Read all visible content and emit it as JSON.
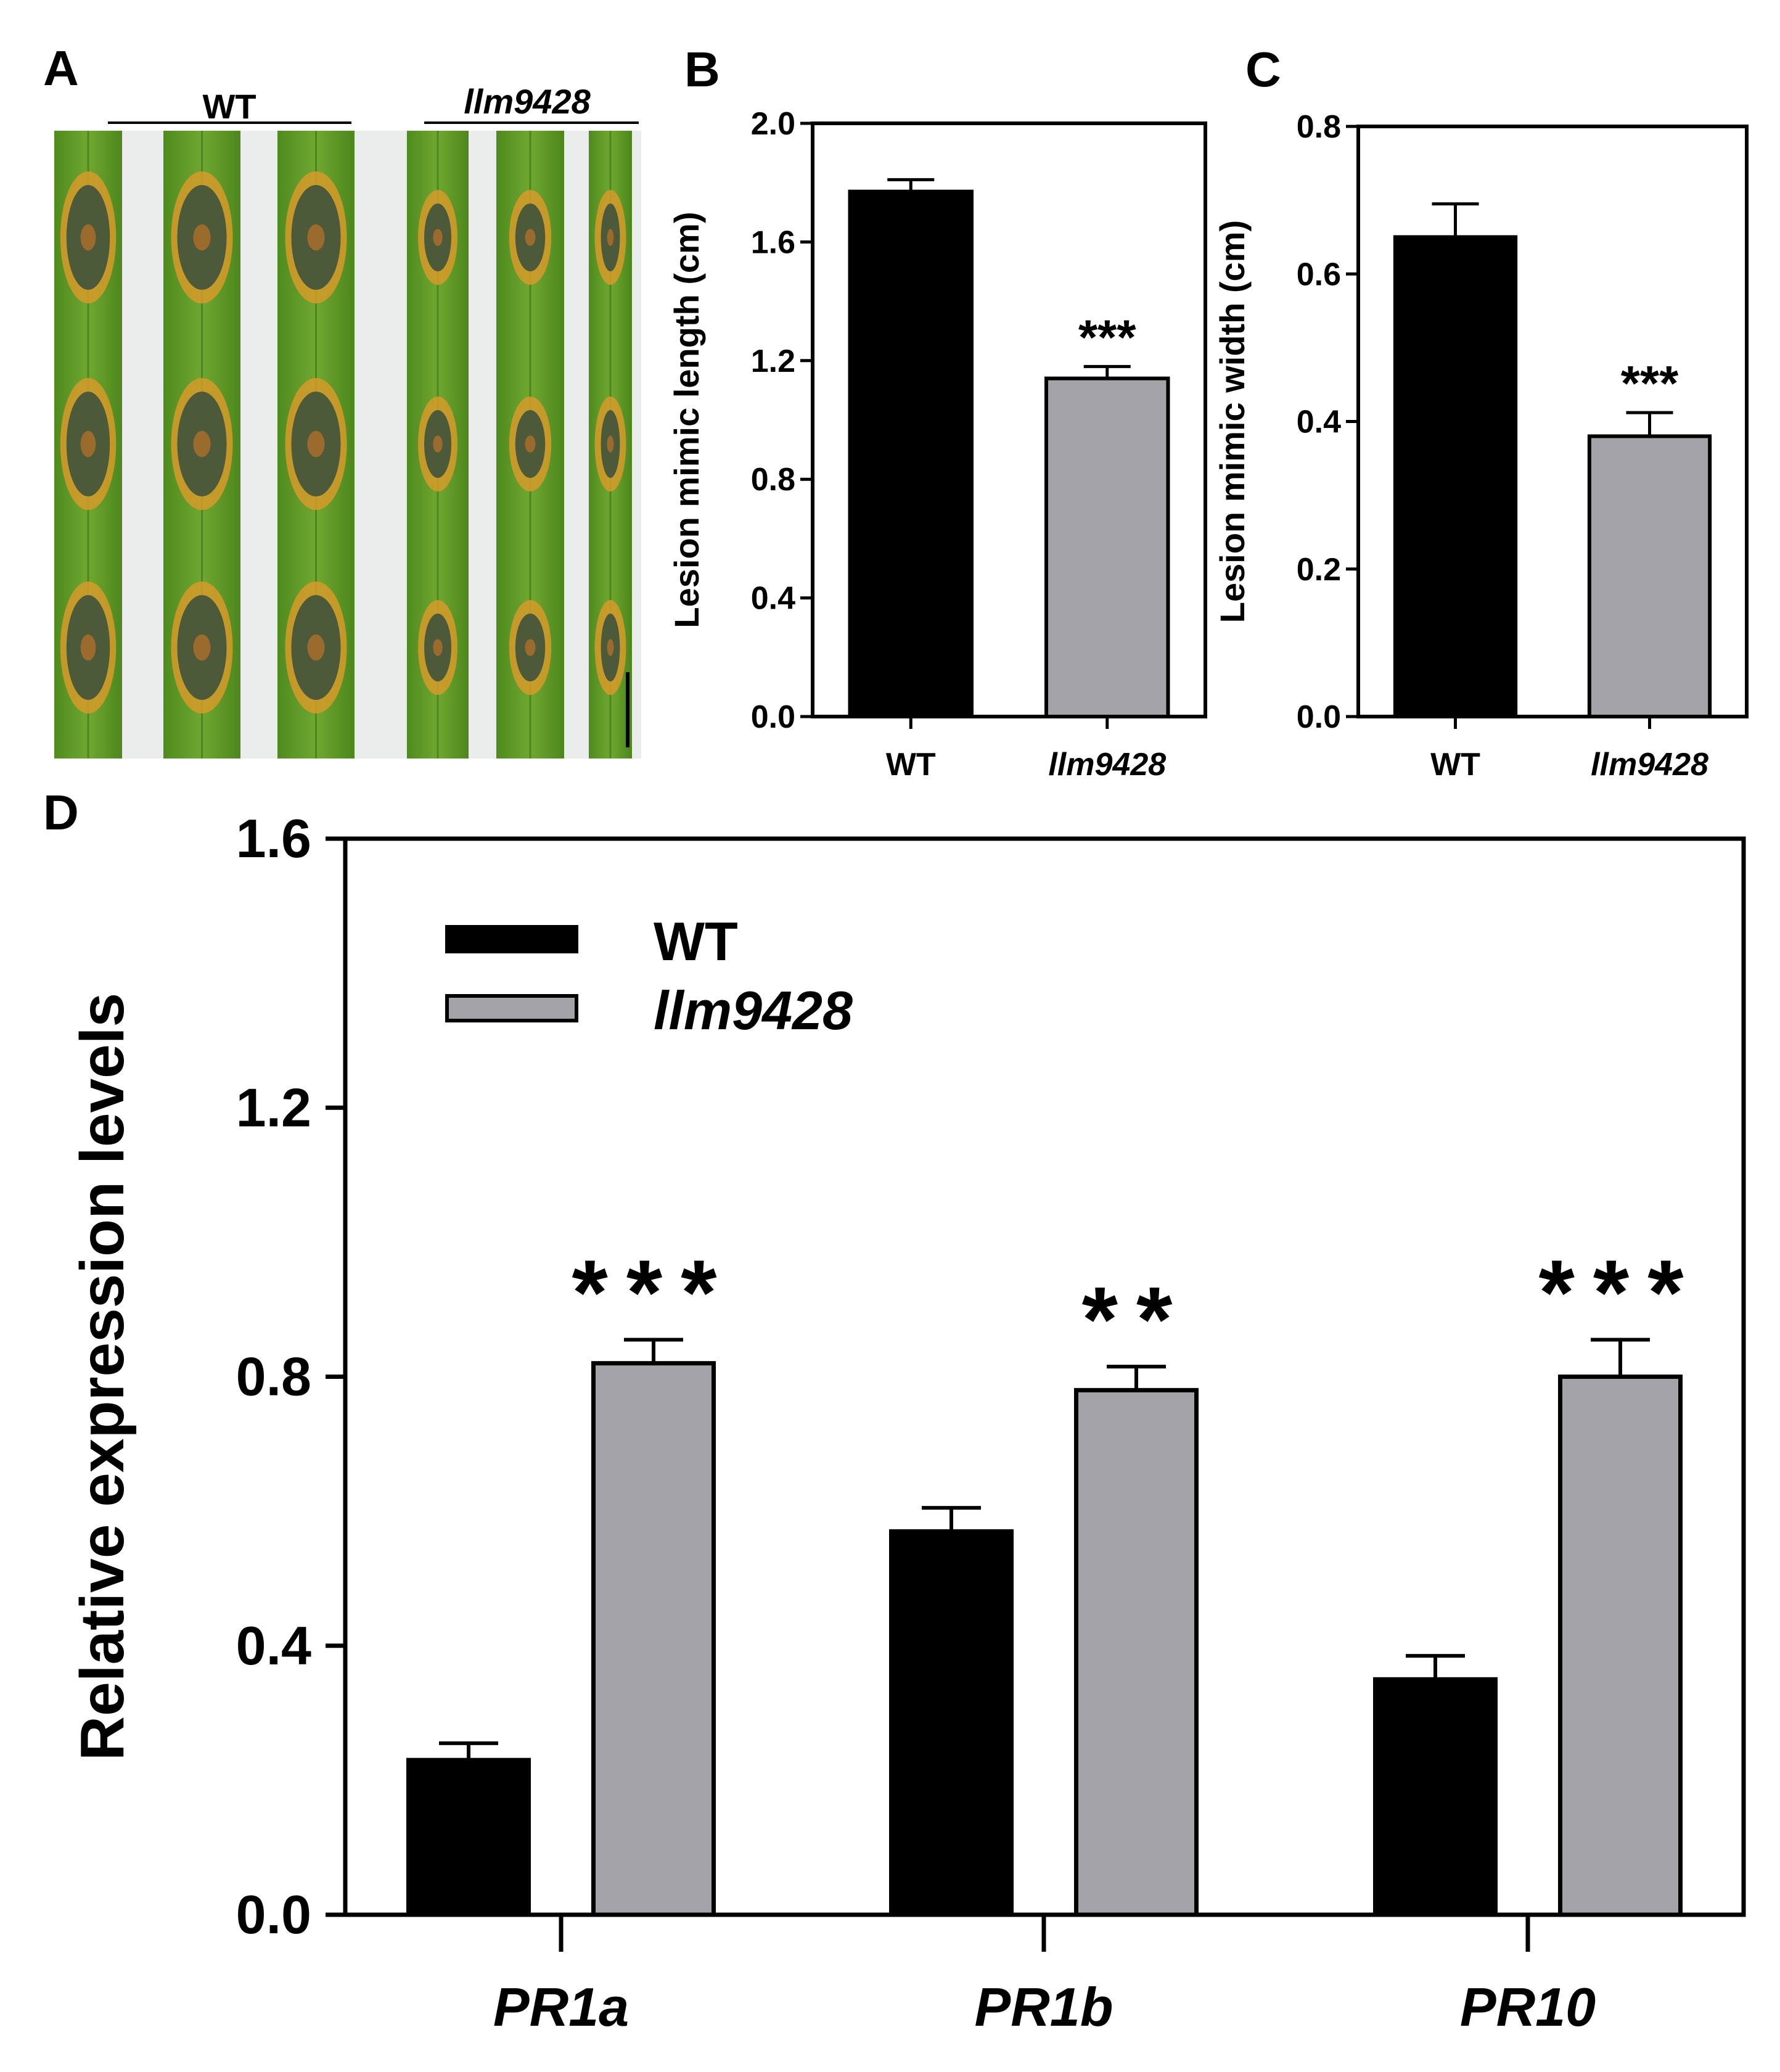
{
  "colors": {
    "wt": "#000000",
    "mutant": "#a4a4a8",
    "axis": "#000000"
  },
  "panels": {
    "A": {
      "letter": "A",
      "group_labels": [
        "WT",
        "llm9428"
      ]
    },
    "B": {
      "letter": "B"
    },
    "C": {
      "letter": "C"
    },
    "D": {
      "letter": "D"
    }
  },
  "chart_data": [
    {
      "id": "B",
      "type": "bar",
      "categories": [
        "WT",
        "llm9428"
      ],
      "category_italic": [
        false,
        true
      ],
      "values": [
        1.77,
        1.14
      ],
      "errors": [
        0.04,
        0.04
      ],
      "significance": [
        "",
        "***"
      ],
      "ylabel": "Lesion mimic length (cm)",
      "xlabel": "",
      "ylim": [
        0,
        2.0
      ],
      "yticks": [
        "0.0",
        "0.4",
        "0.8",
        "1.2",
        "1.6",
        "2.0"
      ]
    },
    {
      "id": "C",
      "type": "bar",
      "categories": [
        "WT",
        "llm9428"
      ],
      "category_italic": [
        false,
        true
      ],
      "values": [
        0.65,
        0.38
      ],
      "errors": [
        0.045,
        0.032
      ],
      "significance": [
        "",
        "***"
      ],
      "ylabel": "Lesion mimic width (cm)",
      "xlabel": "",
      "ylim": [
        0,
        0.8
      ],
      "yticks": [
        "0.0",
        "0.2",
        "0.4",
        "0.6",
        "0.8"
      ]
    },
    {
      "id": "D",
      "type": "bar",
      "categories": [
        "PR1a",
        "PR1b",
        "PR10"
      ],
      "series": [
        {
          "name": "WT",
          "values": [
            0.23,
            0.57,
            0.35
          ],
          "errors": [
            0.025,
            0.035,
            0.035
          ]
        },
        {
          "name": "llm9428",
          "values": [
            0.82,
            0.78,
            0.8
          ],
          "errors": [
            0.035,
            0.035,
            0.055
          ]
        }
      ],
      "significance": [
        "***",
        "**",
        "***"
      ],
      "ylabel": "Relative expression levels",
      "xlabel": "",
      "ylim": [
        0,
        1.6
      ],
      "yticks": [
        "0.0",
        "0.4",
        "0.8",
        "1.2",
        "1.6"
      ],
      "legend_position": "top-left"
    }
  ]
}
